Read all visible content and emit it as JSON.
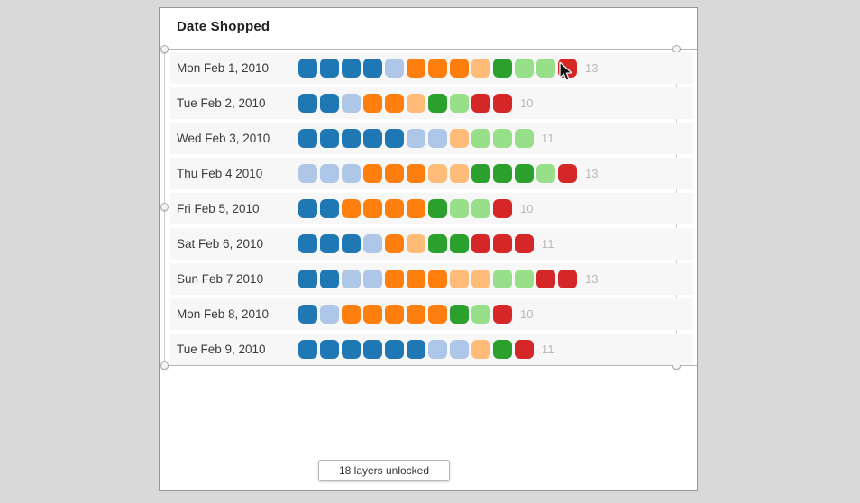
{
  "panel": {
    "title": "Date Shopped"
  },
  "tooltip": {
    "label": "18 layers unlocked"
  },
  "chart_data": {
    "type": "heatmap",
    "title": "Date Shopped",
    "legend": "none",
    "palette": {
      "blue": "#1f77b4",
      "light_blue": "#aec7e8",
      "orange": "#ff7f0e",
      "light_orange": "#ffbb78",
      "green": "#2ca02c",
      "light_green": "#98df8a",
      "red": "#d62728"
    },
    "rows": [
      {
        "label": "Mon Feb 1, 2010",
        "count": 13,
        "cells": [
          "blue",
          "blue",
          "blue",
          "blue",
          "light_blue",
          "orange",
          "orange",
          "orange",
          "light_orange",
          "green",
          "light_green",
          "light_green",
          "red"
        ]
      },
      {
        "label": "Tue Feb 2, 2010",
        "count": 10,
        "cells": [
          "blue",
          "blue",
          "light_blue",
          "orange",
          "orange",
          "light_orange",
          "green",
          "light_green",
          "red",
          "red"
        ]
      },
      {
        "label": "Wed Feb 3, 2010",
        "count": 11,
        "cells": [
          "blue",
          "blue",
          "blue",
          "blue",
          "blue",
          "light_blue",
          "light_blue",
          "light_orange",
          "light_green",
          "light_green",
          "light_green"
        ]
      },
      {
        "label": "Thu Feb 4 2010",
        "count": 13,
        "cells": [
          "light_blue",
          "light_blue",
          "light_blue",
          "orange",
          "orange",
          "orange",
          "light_orange",
          "light_orange",
          "green",
          "green",
          "green",
          "light_green",
          "red"
        ]
      },
      {
        "label": "Fri Feb 5, 2010",
        "count": 10,
        "cells": [
          "blue",
          "blue",
          "orange",
          "orange",
          "orange",
          "orange",
          "green",
          "light_green",
          "light_green",
          "red"
        ]
      },
      {
        "label": "Sat Feb 6, 2010",
        "count": 11,
        "cells": [
          "blue",
          "blue",
          "blue",
          "light_blue",
          "orange",
          "light_orange",
          "green",
          "green",
          "red",
          "red",
          "red"
        ]
      },
      {
        "label": "Sun Feb 7 2010",
        "count": 13,
        "cells": [
          "blue",
          "blue",
          "light_blue",
          "light_blue",
          "orange",
          "orange",
          "orange",
          "light_orange",
          "light_orange",
          "light_green",
          "light_green",
          "red",
          "red"
        ]
      },
      {
        "label": "Mon Feb 8, 2010",
        "count": 10,
        "cells": [
          "blue",
          "light_blue",
          "orange",
          "orange",
          "orange",
          "orange",
          "orange",
          "green",
          "light_green",
          "red"
        ]
      },
      {
        "label": "Tue Feb 9, 2010",
        "count": 11,
        "cells": [
          "blue",
          "blue",
          "blue",
          "blue",
          "blue",
          "blue",
          "light_blue",
          "light_blue",
          "light_orange",
          "green",
          "red"
        ]
      }
    ]
  }
}
